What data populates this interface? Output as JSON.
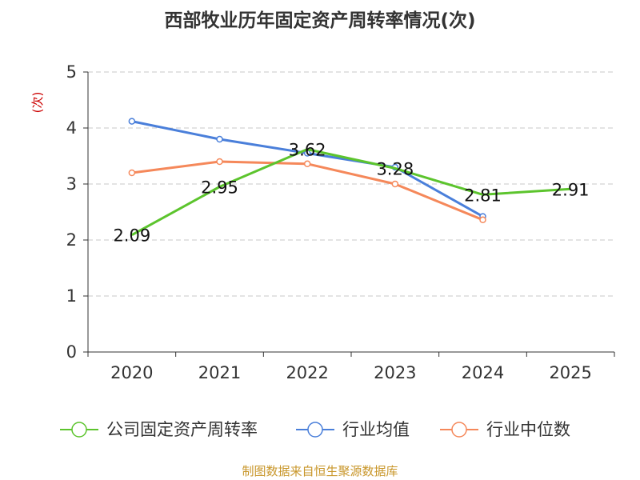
{
  "chart_data": {
    "type": "line",
    "title": "西部牧业历年固定资产周转率情况(次)",
    "ylabel": "(次)",
    "xlabel": "",
    "categories": [
      "2020",
      "2021",
      "2022",
      "2023",
      "2024",
      "2025"
    ],
    "ylim": [
      0,
      5
    ],
    "yticks": [
      0,
      1,
      2,
      3,
      4,
      5
    ],
    "grid": true,
    "legend_position": "bottom",
    "series": [
      {
        "name": "公司固定资产周转率",
        "color": "#5cc42d",
        "values": [
          2.09,
          2.95,
          3.62,
          3.28,
          2.81,
          2.91
        ],
        "labels": [
          "2.09",
          "2.95",
          "3.62",
          "3.28",
          "2.81",
          "2.91"
        ]
      },
      {
        "name": "行业均值",
        "color": "#4a7fda",
        "values": [
          4.12,
          3.8,
          3.55,
          3.3,
          2.42,
          null
        ]
      },
      {
        "name": "行业中位数",
        "color": "#f5885a",
        "values": [
          3.2,
          3.4,
          3.36,
          3.0,
          2.36,
          null
        ]
      }
    ],
    "source": "制图数据来自恒生聚源数据库"
  }
}
